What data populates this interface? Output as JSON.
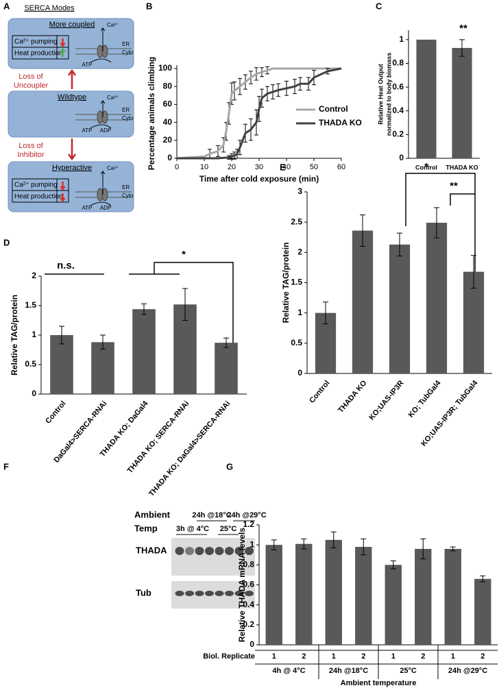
{
  "diagram": {
    "label": "A",
    "title": "SERCA Modes",
    "states": [
      {
        "name": "More coupled",
        "rows": [
          "Ca²⁺ pumping",
          "Heat production"
        ],
        "ion": "Ca²⁺",
        "compartments": [
          "ER",
          "Cyto"
        ],
        "nucleotides": [
          "ATP"
        ]
      },
      {
        "name": "Wildtype",
        "ion": "Ca²⁺",
        "compartments": [
          "ER",
          "Cyto"
        ],
        "nucleotides": [
          "ATP",
          "ADP"
        ]
      },
      {
        "name": "Hyperactive",
        "rows": [
          "Ca²⁺ pumping",
          "Heat production"
        ],
        "ion": "Ca²⁺",
        "compartments": [
          "ER",
          "Cyto"
        ],
        "nucleotides": [
          "ATP",
          "ADP"
        ]
      }
    ],
    "transitions": [
      [
        "Loss of",
        "Uncoupler"
      ],
      [
        "Loss of",
        "Inhibitor"
      ]
    ]
  },
  "blot": {
    "label": "F",
    "title": [
      "Ambient",
      "Temp"
    ],
    "conditions": [
      "3h @ 4°C",
      "24h @18°C",
      "25°C",
      "24h @29°C"
    ],
    "rows": [
      "THADA",
      "Tub"
    ]
  },
  "chart_data": [
    {
      "type": "line",
      "label": "B",
      "xlabel": "Time after cold exposure (min)",
      "ylabel": "Percentage animals climbing",
      "xlim": [
        0,
        60
      ],
      "xticks": [
        0,
        10,
        20,
        30,
        40,
        50,
        60
      ],
      "ylim": [
        0,
        100
      ],
      "yticks": [
        0,
        20,
        40,
        60,
        80,
        100
      ],
      "series": [
        {
          "name": "Control",
          "color": "#a6a6a6",
          "x": [
            0,
            10,
            12,
            15,
            17,
            18,
            19,
            20,
            21,
            23,
            25,
            27,
            29,
            31,
            33,
            35,
            40,
            45,
            50,
            55,
            60
          ],
          "values": [
            0,
            2,
            5,
            8,
            15,
            30,
            50,
            72,
            75,
            80,
            85,
            90,
            94,
            96,
            98,
            100,
            100,
            100,
            100,
            100,
            100
          ],
          "errors": [
            null,
            null,
            5,
            6,
            8,
            10,
            12,
            12,
            10,
            9,
            8,
            7,
            7,
            5,
            4,
            null,
            null,
            null,
            null,
            null,
            null
          ]
        },
        {
          "name": "THADA KO",
          "color": "#404040",
          "x": [
            0,
            15,
            19,
            20,
            21,
            22,
            23,
            25,
            27,
            29,
            30,
            31,
            33,
            35,
            37,
            40,
            43,
            45,
            48,
            50,
            55,
            60
          ],
          "values": [
            0,
            0,
            1,
            2,
            3,
            5,
            12,
            28,
            32,
            40,
            55,
            67,
            72,
            74,
            76,
            78,
            80,
            83,
            83,
            90,
            97,
            100
          ],
          "errors": [
            null,
            null,
            2,
            3,
            4,
            5,
            8,
            10,
            12,
            14,
            14,
            10,
            8,
            8,
            7,
            8,
            8,
            7,
            7,
            8,
            3,
            null
          ]
        }
      ]
    },
    {
      "type": "bar",
      "label": "C",
      "ylabel": [
        "Relative Heat Output",
        "normalized to body biomass"
      ],
      "categories": [
        "Control",
        "THADA KO"
      ],
      "values": [
        1,
        0.93
      ],
      "errors": [
        null,
        0.07
      ],
      "color": "#595959",
      "ylim": [
        0,
        1.08
      ],
      "yticks": [
        0,
        0.2,
        0.4,
        0.6,
        0.8,
        1
      ],
      "annotations": [
        "**"
      ]
    },
    {
      "type": "bar",
      "label": "D",
      "ylabel": "Relative TAG/protein",
      "categories": [
        "Control",
        "DaGal4>SERCA-RNAi",
        "THADA KO; DaGal4",
        "THADA KO; SERCA-RNAi",
        "THADA KO; DaGal4>SERCA-RNAi"
      ],
      "values": [
        1,
        0.88,
        1.44,
        1.52,
        0.87
      ],
      "errors": [
        0.15,
        0.12,
        0.09,
        0.27,
        0.08
      ],
      "color": "#595959",
      "ylim": [
        0,
        2
      ],
      "yticks": [
        0,
        0.5,
        1,
        1.5,
        2
      ],
      "annotations": [
        "n.s.",
        "*"
      ]
    },
    {
      "type": "bar",
      "label": "E",
      "ylabel": "Relative TAG/protein",
      "categories": [
        "Control",
        "THADA KO",
        "KO;UAS-IP3R",
        "KO; TubGal4",
        "KO;UAS-IP3R; TubGal4"
      ],
      "values": [
        1,
        2.36,
        2.13,
        2.49,
        1.68
      ],
      "errors": [
        0.18,
        0.26,
        0.19,
        0.25,
        0.27
      ],
      "color": "#595959",
      "ylim": [
        0,
        3
      ],
      "yticks": [
        0,
        0.5,
        1,
        1.5,
        2,
        2.5,
        3
      ],
      "annotations": [
        "*",
        "**"
      ]
    },
    {
      "type": "bar",
      "label": "G",
      "ylabel": "Relative THADA mRNA levels",
      "xlabel": "Ambient temperature",
      "row_label": "Biol. Replicate",
      "categories": [
        "1",
        "2",
        "1",
        "2",
        "1",
        "2",
        "1",
        "2"
      ],
      "groups": [
        "4h @ 4°C",
        "24h @18°C",
        "25°C",
        "24h @29°C"
      ],
      "values": [
        1.0,
        1.01,
        1.05,
        0.98,
        0.8,
        0.96,
        0.96,
        0.66
      ],
      "errors": [
        0.05,
        0.05,
        0.08,
        0.08,
        0.04,
        0.1,
        0.02,
        0.03
      ],
      "color": "#595959",
      "ylim": [
        0,
        1.2
      ],
      "yticks": [
        0,
        0.2,
        0.4,
        0.6,
        0.8,
        1,
        1.2
      ]
    }
  ]
}
